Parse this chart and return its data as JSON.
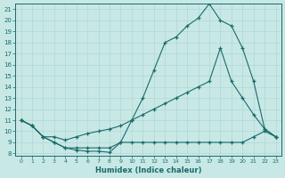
{
  "xlabel": "Humidex (Indice chaleur)",
  "bg_color": "#c8e8e5",
  "line_color": "#1a6b6b",
  "grid_color": "#b0d8d5",
  "xlim": [
    -0.5,
    23.5
  ],
  "ylim": [
    7.8,
    21.5
  ],
  "xticks": [
    0,
    1,
    2,
    3,
    4,
    5,
    6,
    7,
    8,
    9,
    10,
    11,
    12,
    13,
    14,
    15,
    16,
    17,
    18,
    19,
    20,
    21,
    22,
    23
  ],
  "yticks": [
    8,
    9,
    10,
    11,
    12,
    13,
    14,
    15,
    16,
    17,
    18,
    19,
    20,
    21
  ],
  "curve_wavy_x": [
    0,
    1,
    2,
    3,
    4,
    5,
    6,
    7,
    8,
    9,
    10,
    11,
    12,
    13,
    14,
    15,
    16,
    17,
    18,
    19,
    20,
    21,
    22,
    23
  ],
  "curve_wavy_y": [
    11.0,
    10.5,
    9.5,
    9.0,
    8.5,
    8.3,
    8.2,
    8.2,
    8.1,
    9.0,
    9.0,
    9.0,
    9.0,
    9.0,
    9.0,
    9.0,
    9.0,
    9.0,
    9.0,
    9.0,
    9.0,
    9.5,
    10.0,
    9.5
  ],
  "curve_peak_x": [
    0,
    1,
    2,
    3,
    4,
    5,
    6,
    7,
    8,
    9,
    10,
    11,
    12,
    13,
    14,
    15,
    16,
    17,
    18,
    19,
    20,
    21,
    22,
    23
  ],
  "curve_peak_y": [
    11.0,
    10.5,
    9.5,
    9.0,
    8.5,
    8.5,
    8.5,
    8.5,
    8.5,
    9.0,
    11.0,
    13.0,
    15.5,
    18.0,
    18.5,
    19.5,
    20.2,
    21.5,
    20.0,
    19.5,
    17.5,
    14.5,
    10.2,
    9.5
  ],
  "curve_linear_x": [
    0,
    1,
    2,
    3,
    4,
    5,
    6,
    7,
    8,
    9,
    10,
    11,
    12,
    13,
    14,
    15,
    16,
    17,
    18,
    19,
    20,
    21,
    22,
    23
  ],
  "curve_linear_y": [
    11.0,
    10.5,
    9.5,
    9.5,
    9.2,
    9.5,
    9.8,
    10.0,
    10.2,
    10.5,
    11.0,
    11.5,
    12.0,
    12.5,
    13.0,
    13.5,
    14.0,
    14.5,
    17.5,
    14.5,
    13.0,
    11.5,
    10.2,
    9.5
  ]
}
